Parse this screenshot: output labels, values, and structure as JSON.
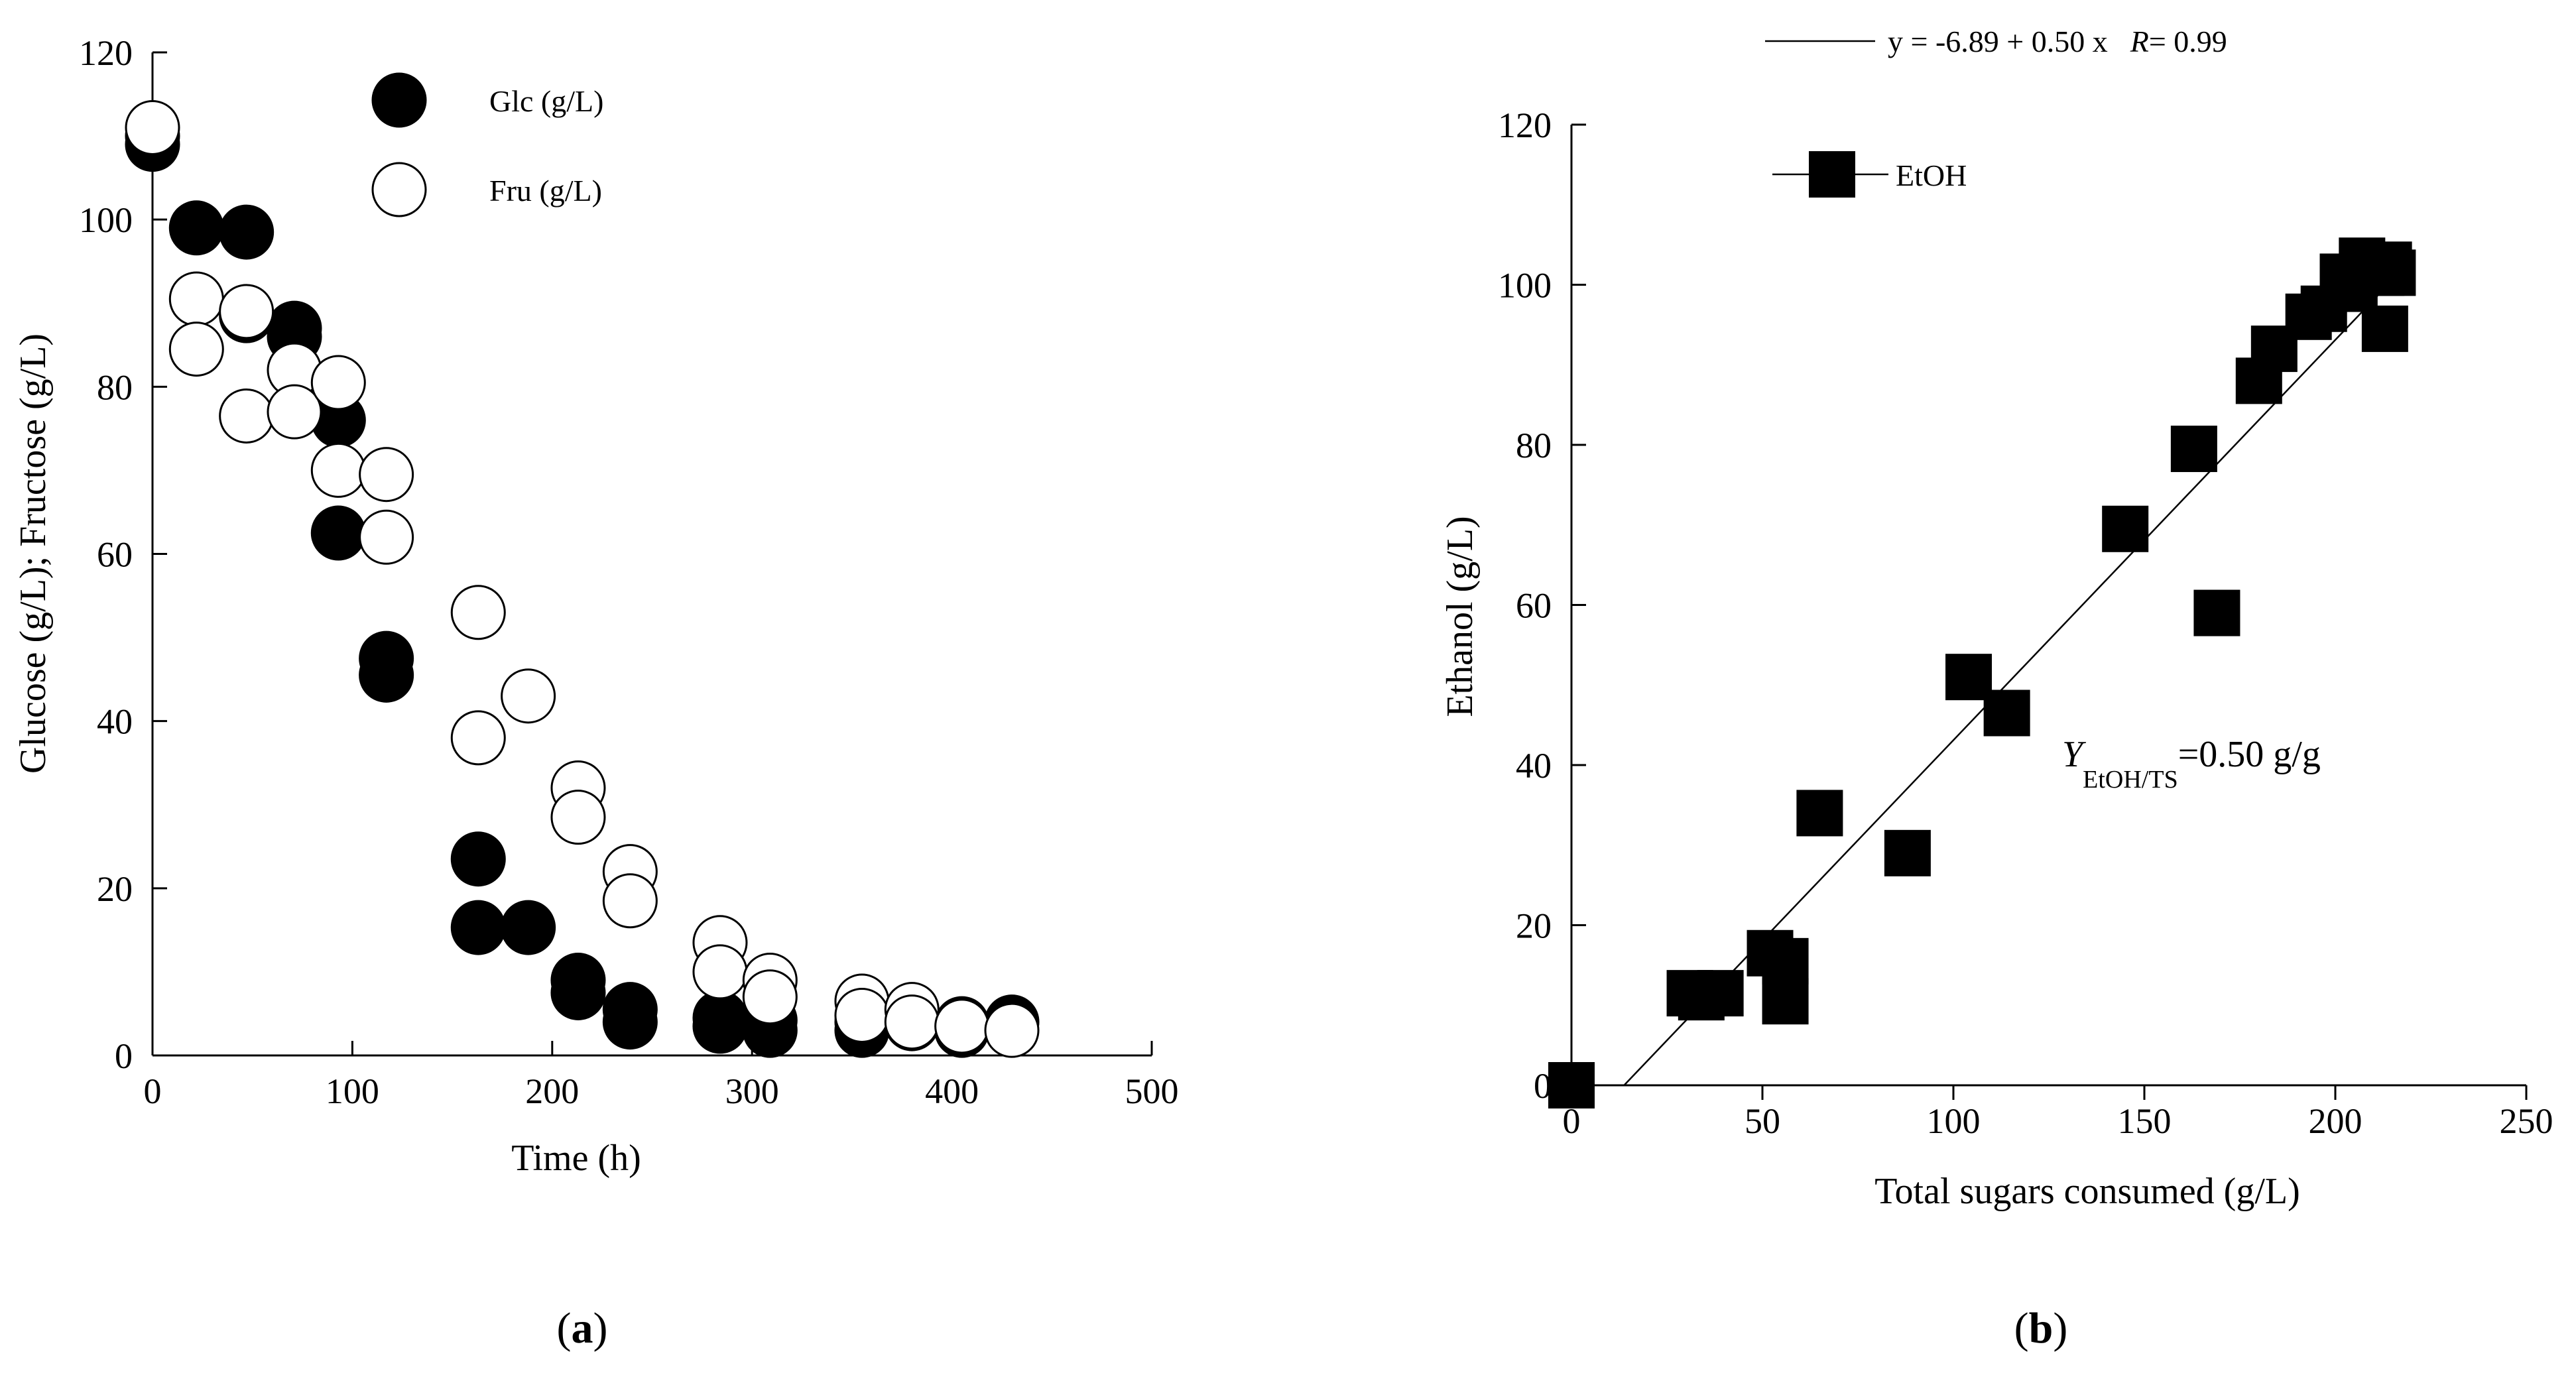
{
  "chart_data": [
    {
      "type": "scatter",
      "panel": "a",
      "panel_label": "(a)",
      "xlabel": "Time (h)",
      "ylabel": "Glucose (g/L); Fructose (g/L)",
      "xlim": [
        0,
        500
      ],
      "ylim": [
        0,
        120
      ],
      "xticks": [
        0,
        100,
        200,
        300,
        400,
        500
      ],
      "yticks": [
        0,
        20,
        40,
        60,
        80,
        100,
        120
      ],
      "series": [
        {
          "name": "Glc (g/L)",
          "marker": "filled-circle",
          "x": [
            0,
            0,
            22,
            47,
            47,
            71,
            71,
            93,
            93,
            117,
            117,
            163,
            163,
            188,
            213,
            213,
            239,
            239,
            284,
            284,
            309,
            309,
            355,
            355,
            380,
            380,
            405,
            405,
            430
          ],
          "y": [
            110,
            109,
            99,
            98.5,
            88.5,
            87,
            86,
            76,
            62.5,
            47.5,
            45.5,
            23.5,
            15.3,
            15.3,
            9,
            7.5,
            5.5,
            4,
            4.5,
            3.5,
            4.2,
            3,
            4,
            3,
            4.2,
            3.8,
            3.8,
            3,
            4
          ]
        },
        {
          "name": "Fru (g/L)",
          "marker": "open-circle",
          "x": [
            0,
            22,
            22,
            47,
            47,
            71,
            71,
            93,
            93,
            117,
            117,
            163,
            163,
            188,
            213,
            213,
            239,
            239,
            284,
            284,
            309,
            309,
            355,
            355,
            380,
            380,
            405,
            430
          ],
          "y": [
            111,
            90.5,
            84.5,
            89,
            76.5,
            82,
            77,
            80.5,
            70,
            69.5,
            62,
            53,
            38,
            43,
            32,
            28.5,
            22,
            18.5,
            13.5,
            10,
            9,
            7,
            6.5,
            4.8,
            5.5,
            4,
            3.5,
            3
          ]
        }
      ]
    },
    {
      "type": "scatter",
      "panel": "b",
      "panel_label": "(b)",
      "xlabel": "Total sugars consumed (g/L)",
      "ylabel": "Ethanol (g/L)",
      "xlim": [
        0,
        250
      ],
      "ylim": [
        0,
        120
      ],
      "xticks": [
        0,
        50,
        100,
        150,
        200,
        250
      ],
      "yticks": [
        0,
        20,
        40,
        60,
        80,
        100,
        120
      ],
      "series": [
        {
          "name": "EtOH",
          "marker": "filled-square",
          "x": [
            0,
            31,
            34,
            39,
            52,
            56,
            56,
            65,
            88,
            104,
            114,
            145,
            163,
            169,
            180,
            184,
            193,
            197,
            202,
            205,
            207,
            210,
            212,
            213,
            214,
            215
          ],
          "y": [
            0,
            11.5,
            11,
            11.5,
            16.5,
            15.5,
            10.5,
            34,
            29,
            51,
            46.5,
            69.5,
            79.5,
            59,
            88,
            92,
            96,
            97,
            101,
            99.5,
            103,
            102,
            101.5,
            94.5,
            102.5,
            101.5
          ]
        }
      ],
      "fit": {
        "intercept": -6.89,
        "slope": 0.5,
        "x_range": [
          13.78,
          215
        ],
        "legend": "y = -6.89 + 0.50 x",
        "r_label": "R",
        "r_value": "= 0.99"
      },
      "annotation": {
        "symbol": "Y",
        "subscript": "EtOH/TS",
        "value": "=0.50 g/g"
      }
    }
  ]
}
